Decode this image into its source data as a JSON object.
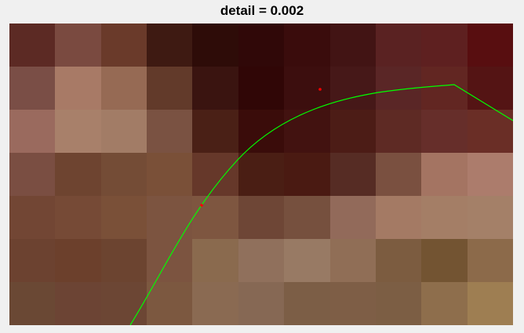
{
  "figure": {
    "title": "detail = 0.002"
  },
  "image": {
    "grid_cols": 11,
    "grid_rows": 7,
    "pixels": [
      [
        "#5c2a24",
        "#7a4a40",
        "#6a3a2a",
        "#3e1a12",
        "#2e0c08",
        "#300808",
        "#3a0c0c",
        "#421414",
        "#5a2222",
        "#5e2020",
        "#580e10"
      ],
      [
        "#7a4e46",
        "#a87a66",
        "#966a54",
        "#623a2a",
        "#3a1410",
        "#300606",
        "#3c0e0e",
        "#461818",
        "#5a2626",
        "#622622",
        "#541414"
      ],
      [
        "#9a6a5e",
        "#a8806a",
        "#a27c66",
        "#7a5242",
        "#4a2016",
        "#3a0c0a",
        "#421210",
        "#4c1c16",
        "#5e2a24",
        "#662e2a",
        "#6a2e26"
      ],
      [
        "#7a4e42",
        "#6e4430",
        "#744c36",
        "#7a5038",
        "#66382a",
        "#4a1e14",
        "#4a1a12",
        "#562c24",
        "#7a5040",
        "#a47462",
        "#ac7c6c"
      ],
      [
        "#724634",
        "#764a36",
        "#7a5038",
        "#7c5440",
        "#7e5640",
        "#6e4636",
        "#76503e",
        "#926a5a",
        "#a47a64",
        "#a47e66",
        "#a48068"
      ],
      [
        "#6c4230",
        "#6c402c",
        "#6c4430",
        "#7c5440",
        "#8a6a4e",
        "#90705c",
        "#987a64",
        "#906e56",
        "#7c5c40",
        "#735432",
        "#8c6a4a"
      ],
      [
        "#6a4834",
        "#6c4434",
        "#6c4634",
        "#7c5840",
        "#8a6a52",
        "#866854",
        "#7c5e46",
        "#7e5e46",
        "#7c5e44",
        "#8e6e4c",
        "#9e7e52"
      ]
    ],
    "curve_color": "#00ff00",
    "point_color": "#ff0000"
  }
}
